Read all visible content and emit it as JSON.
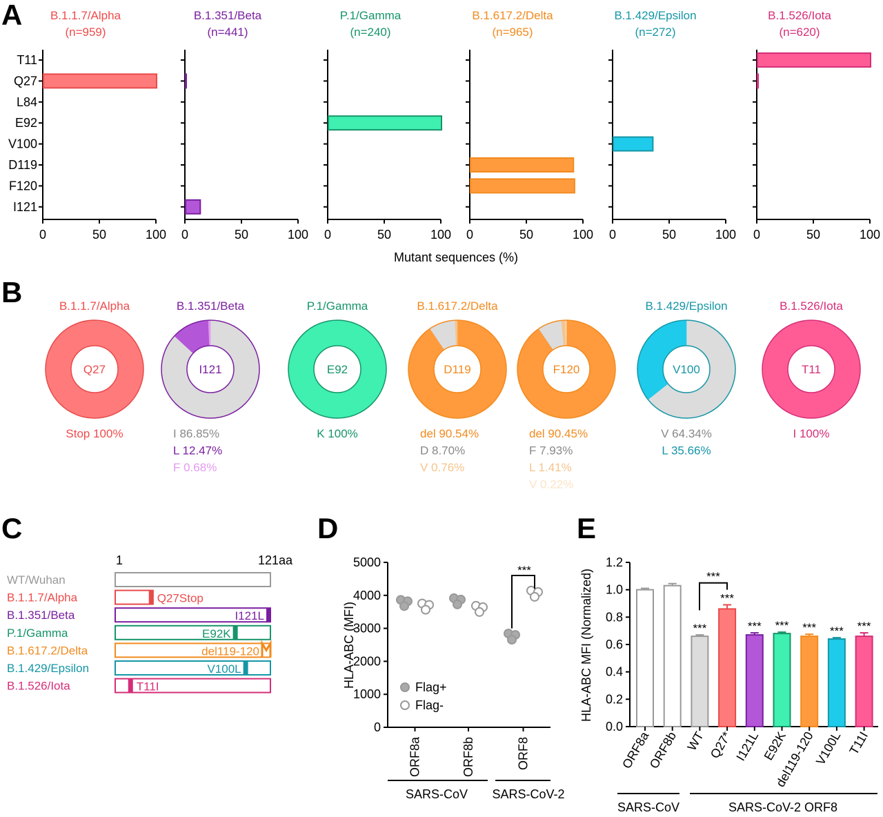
{
  "panel_labels": [
    "A",
    "B",
    "C",
    "D",
    "E"
  ],
  "colors": {
    "alpha": {
      "text": "#ee4c4c",
      "fill": "#ff7b7b",
      "stroke": "#e84a4a"
    },
    "beta": {
      "text": "#7a1fa0",
      "fill": "#b356d8",
      "stroke": "#7a1fa0"
    },
    "gamma": {
      "text": "#16946a",
      "fill": "#3ff0b0",
      "stroke": "#16946a"
    },
    "delta": {
      "text": "#f28a1e",
      "fill": "#ff9b3d",
      "stroke": "#f28a1e"
    },
    "epsilon": {
      "text": "#1596a6",
      "fill": "#1ecbea",
      "stroke": "#1596a6"
    },
    "iota": {
      "text": "#d62d78",
      "fill": "#ff5c95",
      "stroke": "#d62d78"
    },
    "grey": "#dcdcdc",
    "greyText": "#888888"
  },
  "chart_data": [
    {
      "panel": "A",
      "type": "bar",
      "orientation": "horizontal",
      "categories": [
        "T11",
        "Q27",
        "L84",
        "E92",
        "V100",
        "D119",
        "F120",
        "I121"
      ],
      "xlabel": "Mutant sequences (%)",
      "xlim": [
        0,
        100
      ],
      "xticks": [
        "0",
        "50",
        "100"
      ],
      "series": [
        {
          "key": "alpha",
          "name": "B.1.1.7/Alpha",
          "n": "(n=959)",
          "values": {
            "Q27": 100
          }
        },
        {
          "key": "beta",
          "name": "B.1.351/Beta",
          "n": "(n=441)",
          "values": {
            "Q27": 0.5,
            "I121": 13
          }
        },
        {
          "key": "gamma",
          "name": "P.1/Gamma",
          "n": "(n=240)",
          "values": {
            "E92": 100
          }
        },
        {
          "key": "delta",
          "name": "B.1.617.2/Delta",
          "n": "(n=965)",
          "values": {
            "D119": 91,
            "F120": 92
          }
        },
        {
          "key": "epsilon",
          "name": "B.1.429/Epsilon",
          "n": "(n=272)",
          "values": {
            "V100": 35
          }
        },
        {
          "key": "iota",
          "name": "B.1.526/Iota",
          "n": "(n=620)",
          "values": {
            "T11": 100,
            "Q27": 0.5
          }
        }
      ]
    },
    {
      "panel": "B",
      "type": "pie",
      "donuts": [
        {
          "key": "alpha",
          "title": "B.1.1.7/Alpha",
          "center": "Q27",
          "slices": [
            {
              "label": "Stop",
              "value": 100,
              "text": "Stop 100%",
              "color": "alpha"
            }
          ]
        },
        {
          "key": "beta",
          "title": "B.1.351/Beta",
          "center": "I121",
          "slices": [
            {
              "label": "I",
              "value": 86.85,
              "text": "I  86.85%",
              "color": "grey"
            },
            {
              "label": "L",
              "value": 12.47,
              "text": "L 12.47%",
              "color": "beta"
            },
            {
              "label": "F",
              "value": 0.68,
              "text": "F  0.68%",
              "color": "#e39af0"
            }
          ]
        },
        {
          "key": "gamma",
          "title": "P.1/Gamma",
          "center": "E92",
          "slices": [
            {
              "label": "K",
              "value": 100,
              "text": "K 100%",
              "color": "gamma"
            }
          ]
        },
        {
          "key": "delta",
          "title": "B.1.617.2/Delta",
          "center": "D119",
          "slices": [
            {
              "label": "del",
              "value": 90.54,
              "text": "del 90.54%",
              "color": "delta"
            },
            {
              "label": "D",
              "value": 8.7,
              "text": "D    8.70%",
              "color": "grey"
            },
            {
              "label": "V",
              "value": 0.76,
              "text": "V    0.76%",
              "color": "#f6c48c"
            }
          ]
        },
        {
          "key": "delta",
          "title": "",
          "center": "F120",
          "slices": [
            {
              "label": "del",
              "value": 90.45,
              "text": "del 90.45%",
              "color": "delta"
            },
            {
              "label": "F",
              "value": 7.93,
              "text": "F    7.93%",
              "color": "grey"
            },
            {
              "label": "L",
              "value": 1.41,
              "text": "L    1.41%",
              "color": "#f6c48c"
            },
            {
              "label": "V",
              "value": 0.22,
              "text": "V    0.22%",
              "color": "#fbe3c6"
            }
          ]
        },
        {
          "key": "epsilon",
          "title": "B.1.429/Epsilon",
          "center": "V100",
          "slices": [
            {
              "label": "V",
              "value": 64.34,
              "text": "V 64.34%",
              "color": "grey"
            },
            {
              "label": "L",
              "value": 35.66,
              "text": "L 35.66%",
              "color": "epsilon"
            }
          ]
        },
        {
          "key": "iota",
          "title": "B.1.526/Iota",
          "center": "T11",
          "slices": [
            {
              "label": "I",
              "value": 100,
              "text": "I 100%",
              "color": "iota"
            }
          ]
        }
      ]
    },
    {
      "panel": "C",
      "type": "diagram",
      "start_label": "1",
      "end_label": "121aa",
      "rows": [
        {
          "key": "grey",
          "name": "WT/Wuhan",
          "mutation": "",
          "pos": null
        },
        {
          "key": "alpha",
          "name": "B.1.1.7/Alpha",
          "mutation": "Q27Stop",
          "pos": 27
        },
        {
          "key": "beta",
          "name": "B.1.351/Beta",
          "mutation": "I121L",
          "pos": 121
        },
        {
          "key": "gamma",
          "name": "P.1/Gamma",
          "mutation": "E92K",
          "pos": 92
        },
        {
          "key": "delta",
          "name": "B.1.617.2/Delta",
          "mutation": "del119-120",
          "pos": 119
        },
        {
          "key": "epsilon",
          "name": "B.1.429/Epsilon",
          "mutation": "V100L",
          "pos": 100
        },
        {
          "key": "iota",
          "name": "B.1.526/Iota",
          "mutation": "T11I",
          "pos": 11
        }
      ]
    },
    {
      "panel": "D",
      "type": "scatter",
      "ylabel": "HLA-ABC (MFI)",
      "ylim": [
        0,
        5000
      ],
      "yticks": [
        "0",
        "1000",
        "2000",
        "3000",
        "4000",
        "5000"
      ],
      "categories": [
        "ORF8a",
        "ORF8b",
        "ORF8"
      ],
      "legend": [
        "Flag+",
        "Flag-"
      ],
      "series": [
        {
          "name": "Flag+",
          "values": [
            3780,
            3830,
            2760
          ]
        },
        {
          "name": "Flag-",
          "values": [
            3670,
            3600,
            4060
          ]
        }
      ],
      "significance": {
        "label": "***",
        "between": "ORF8 Flag+ vs Flag-"
      },
      "groups": [
        {
          "label": "SARS-CoV",
          "categories": [
            "ORF8a",
            "ORF8b"
          ]
        },
        {
          "label": "SARS-CoV-2",
          "categories": [
            "ORF8"
          ]
        }
      ]
    },
    {
      "panel": "E",
      "type": "bar",
      "ylabel": "HLA-ABC MFI (Normalized)",
      "ylim": [
        0,
        1.2
      ],
      "yticks": [
        "0.0",
        "0.2",
        "0.4",
        "0.6",
        "0.8",
        "1.0",
        "1.2"
      ],
      "categories": [
        "ORF8a",
        "ORF8b",
        "WT",
        "Q27*",
        "I121L",
        "E92K",
        "del119-120",
        "V100L",
        "T11I"
      ],
      "values": [
        1.0,
        1.03,
        0.66,
        0.86,
        0.67,
        0.68,
        0.66,
        0.64,
        0.66
      ],
      "errors": [
        0.01,
        0.015,
        0.01,
        0.03,
        0.015,
        0.01,
        0.015,
        0.01,
        0.025
      ],
      "bar_colors": [
        "white",
        "white",
        "grey",
        "alpha",
        "beta",
        "gamma",
        "delta",
        "epsilon",
        "iota"
      ],
      "significance": [
        "",
        "",
        "***",
        "***",
        "***",
        "***",
        "***",
        "***",
        "***"
      ],
      "bracket": {
        "label": "***",
        "between": "WT vs Q27*"
      },
      "groups": [
        {
          "label": "SARS-CoV",
          "categories": [
            "ORF8a",
            "ORF8b"
          ]
        },
        {
          "label": "SARS-CoV-2 ORF8",
          "categories": [
            "WT",
            "Q27*",
            "I121L",
            "E92K",
            "del119-120",
            "V100L",
            "T11I"
          ]
        }
      ]
    }
  ]
}
